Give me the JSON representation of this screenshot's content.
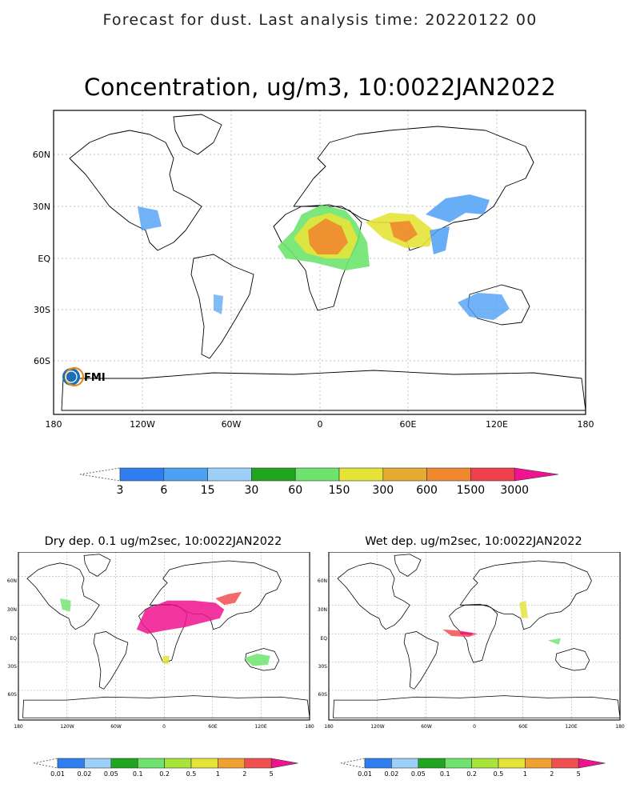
{
  "header": {
    "text": "Forecast for dust. Last analysis time: 20220122 00"
  },
  "logo": {
    "text": "FMI"
  },
  "panels": [
    {
      "id": "concentration",
      "title": "Concentration, ug/m3, 10:0022JAN2022",
      "lat_labels": [
        "60N",
        "30N",
        "EQ",
        "30S",
        "60S"
      ],
      "lon_labels": [
        "180",
        "120W",
        "60W",
        "0",
        "60E",
        "120E",
        "180"
      ],
      "colorbar": {
        "labels": [
          "3",
          "6",
          "15",
          "30",
          "60",
          "150",
          "300",
          "600",
          "1500",
          "3000"
        ],
        "colors": [
          "#2f7ef0",
          "#4da0f4",
          "#9cd0f8",
          "#1fa51f",
          "#6ee46e",
          "#e4e438",
          "#e4aa32",
          "#f08830",
          "#f0404e",
          "#f0138f"
        ]
      }
    },
    {
      "id": "dry-deposition",
      "title": "Dry dep. 0.1 ug/m2sec, 10:0022JAN2022",
      "lat_labels": [
        "60N",
        "30N",
        "EQ",
        "30S",
        "60S"
      ],
      "lon_labels": [
        "180",
        "120W",
        "60W",
        "0",
        "60E",
        "120E",
        "180"
      ],
      "colorbar": {
        "labels": [
          "0.01",
          "0.02",
          "0.05",
          "0.1",
          "0.2",
          "0.5",
          "1",
          "2",
          "5"
        ],
        "colors": [
          "#2f7ef0",
          "#9cd0f8",
          "#1fa51f",
          "#6ee46e",
          "#a8e43a",
          "#e4e438",
          "#f0a030",
          "#f05050",
          "#f0138f"
        ]
      }
    },
    {
      "id": "wet-deposition",
      "title": "Wet dep. ug/m2sec, 10:0022JAN2022",
      "lat_labels": [
        "60N",
        "30N",
        "EQ",
        "30S",
        "60S"
      ],
      "lon_labels": [
        "180",
        "120W",
        "60W",
        "0",
        "60E",
        "120E",
        "180"
      ],
      "colorbar": {
        "labels": [
          "0.01",
          "0.02",
          "0.05",
          "0.1",
          "0.2",
          "0.5",
          "1",
          "2",
          "5"
        ],
        "colors": [
          "#2f7ef0",
          "#9cd0f8",
          "#1fa51f",
          "#6ee46e",
          "#a8e43a",
          "#e4e438",
          "#f0a030",
          "#f05050",
          "#f0138f"
        ]
      }
    }
  ]
}
